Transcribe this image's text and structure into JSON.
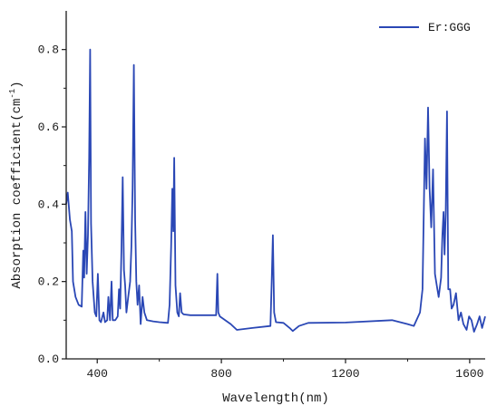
{
  "chart_data": {
    "type": "line",
    "title": "",
    "xlabel": "Wavelength(nm)",
    "ylabel_main": "Absorption coefficient(cm",
    "ylabel_sup": "-1",
    "ylabel_close": ")",
    "xlim": [
      300,
      1650
    ],
    "ylim": [
      0,
      0.9
    ],
    "xticks": [
      400,
      800,
      1200,
      1600
    ],
    "yticks": [
      0.0,
      0.2,
      0.4,
      0.6,
      0.8
    ],
    "ytick_labels": [
      "0.0",
      "0.2",
      "0.4",
      "0.6",
      "0.8"
    ],
    "grid": false,
    "legend_position": "top-right",
    "series": [
      {
        "name": "Er:GGG",
        "color": "#2a47b5",
        "points": [
          [
            300,
            0.4
          ],
          [
            305,
            0.43
          ],
          [
            312,
            0.36
          ],
          [
            318,
            0.33
          ],
          [
            322,
            0.2
          ],
          [
            330,
            0.16
          ],
          [
            340,
            0.14
          ],
          [
            350,
            0.135
          ],
          [
            355,
            0.28
          ],
          [
            358,
            0.21
          ],
          [
            362,
            0.38
          ],
          [
            366,
            0.22
          ],
          [
            370,
            0.32
          ],
          [
            374,
            0.52
          ],
          [
            377,
            0.8
          ],
          [
            380,
            0.35
          ],
          [
            385,
            0.2
          ],
          [
            392,
            0.12
          ],
          [
            397,
            0.11
          ],
          [
            402,
            0.22
          ],
          [
            407,
            0.1
          ],
          [
            412,
            0.095
          ],
          [
            420,
            0.12
          ],
          [
            425,
            0.095
          ],
          [
            432,
            0.1
          ],
          [
            436,
            0.16
          ],
          [
            441,
            0.1
          ],
          [
            446,
            0.2
          ],
          [
            450,
            0.1
          ],
          [
            458,
            0.1
          ],
          [
            466,
            0.11
          ],
          [
            470,
            0.18
          ],
          [
            474,
            0.13
          ],
          [
            478,
            0.28
          ],
          [
            482,
            0.47
          ],
          [
            486,
            0.23
          ],
          [
            490,
            0.19
          ],
          [
            494,
            0.12
          ],
          [
            500,
            0.16
          ],
          [
            506,
            0.2
          ],
          [
            510,
            0.29
          ],
          [
            514,
            0.44
          ],
          [
            518,
            0.76
          ],
          [
            522,
            0.36
          ],
          [
            526,
            0.2
          ],
          [
            530,
            0.14
          ],
          [
            535,
            0.19
          ],
          [
            540,
            0.09
          ],
          [
            546,
            0.16
          ],
          [
            552,
            0.12
          ],
          [
            560,
            0.1
          ],
          [
            580,
            0.097
          ],
          [
            600,
            0.095
          ],
          [
            628,
            0.093
          ],
          [
            633,
            0.14
          ],
          [
            638,
            0.29
          ],
          [
            642,
            0.44
          ],
          [
            645,
            0.33
          ],
          [
            648,
            0.52
          ],
          [
            652,
            0.19
          ],
          [
            658,
            0.12
          ],
          [
            663,
            0.11
          ],
          [
            667,
            0.17
          ],
          [
            672,
            0.12
          ],
          [
            678,
            0.115
          ],
          [
            700,
            0.113
          ],
          [
            750,
            0.113
          ],
          [
            783,
            0.113
          ],
          [
            787,
            0.22
          ],
          [
            790,
            0.12
          ],
          [
            795,
            0.11
          ],
          [
            830,
            0.09
          ],
          [
            850,
            0.075
          ],
          [
            900,
            0.08
          ],
          [
            958,
            0.085
          ],
          [
            962,
            0.2
          ],
          [
            966,
            0.32
          ],
          [
            970,
            0.12
          ],
          [
            976,
            0.095
          ],
          [
            1000,
            0.093
          ],
          [
            1020,
            0.08
          ],
          [
            1030,
            0.072
          ],
          [
            1050,
            0.085
          ],
          [
            1080,
            0.093
          ],
          [
            1200,
            0.094
          ],
          [
            1350,
            0.1
          ],
          [
            1400,
            0.09
          ],
          [
            1420,
            0.085
          ],
          [
            1440,
            0.12
          ],
          [
            1448,
            0.18
          ],
          [
            1456,
            0.57
          ],
          [
            1461,
            0.44
          ],
          [
            1466,
            0.65
          ],
          [
            1471,
            0.44
          ],
          [
            1476,
            0.34
          ],
          [
            1482,
            0.49
          ],
          [
            1488,
            0.22
          ],
          [
            1494,
            0.19
          ],
          [
            1500,
            0.16
          ],
          [
            1508,
            0.21
          ],
          [
            1512,
            0.32
          ],
          [
            1516,
            0.38
          ],
          [
            1519,
            0.27
          ],
          [
            1523,
            0.38
          ],
          [
            1527,
            0.64
          ],
          [
            1531,
            0.18
          ],
          [
            1537,
            0.18
          ],
          [
            1542,
            0.13
          ],
          [
            1548,
            0.14
          ],
          [
            1556,
            0.17
          ],
          [
            1564,
            0.1
          ],
          [
            1572,
            0.12
          ],
          [
            1580,
            0.09
          ],
          [
            1590,
            0.075
          ],
          [
            1598,
            0.11
          ],
          [
            1606,
            0.1
          ],
          [
            1614,
            0.07
          ],
          [
            1624,
            0.09
          ],
          [
            1632,
            0.11
          ],
          [
            1640,
            0.08
          ],
          [
            1650,
            0.11
          ]
        ]
      }
    ]
  }
}
